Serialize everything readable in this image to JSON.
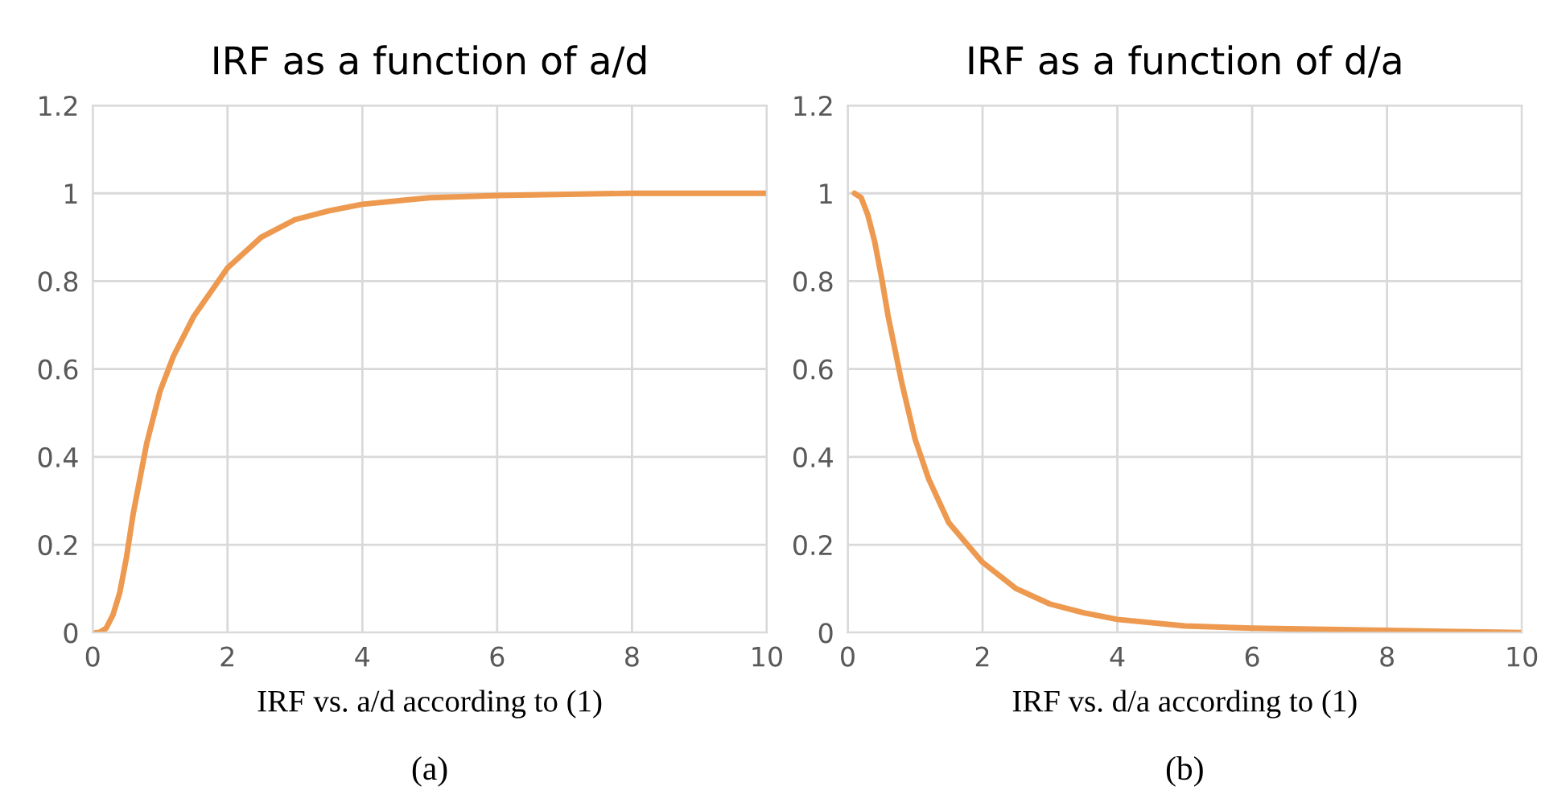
{
  "chart_data": [
    {
      "type": "line",
      "title": "IRF as a function of a/d",
      "xlabel": "IRF vs. a/d according to (1)",
      "annotations": [
        "(a)"
      ],
      "x": [
        0.05,
        0.1,
        0.2,
        0.3,
        0.4,
        0.5,
        0.6,
        0.8,
        1.0,
        1.2,
        1.5,
        2,
        2.5,
        3,
        3.5,
        4,
        5,
        6,
        8,
        10
      ],
      "series": [
        {
          "color": "#ed9a50",
          "values": [
            0,
            0,
            0.01,
            0.04,
            0.09,
            0.17,
            0.27,
            0.43,
            0.55,
            0.63,
            0.72,
            0.83,
            0.9,
            0.94,
            0.96,
            0.975,
            0.99,
            0.995,
            1.0,
            1.0
          ]
        }
      ],
      "xlim": [
        0,
        10
      ],
      "xticks": [
        0,
        2,
        4,
        6,
        8,
        10
      ],
      "ylim": [
        0,
        1.2
      ],
      "yticks": [
        0,
        0.2,
        0.4,
        0.6,
        0.8,
        1,
        1.2
      ],
      "grid": true,
      "marker": "none",
      "line_style": "solid"
    },
    {
      "type": "line",
      "title": "IRF as a function of d/a",
      "xlabel": "IRF vs. d/a according to (1)",
      "annotations": [
        "(b)"
      ],
      "x": [
        0.1,
        0.2,
        0.3,
        0.4,
        0.5,
        0.6,
        0.8,
        1.0,
        1.2,
        1.5,
        2,
        2.5,
        3,
        3.5,
        4,
        5,
        6,
        8,
        10
      ],
      "series": [
        {
          "color": "#ed9a50",
          "values": [
            1.0,
            0.99,
            0.95,
            0.89,
            0.81,
            0.72,
            0.57,
            0.44,
            0.35,
            0.25,
            0.16,
            0.1,
            0.065,
            0.045,
            0.03,
            0.015,
            0.01,
            0.005,
            0
          ]
        }
      ],
      "xlim": [
        0,
        10
      ],
      "xticks": [
        0,
        2,
        4,
        6,
        8,
        10
      ],
      "ylim": [
        0,
        1.2
      ],
      "yticks": [
        0,
        0.2,
        0.4,
        0.6,
        0.8,
        1,
        1.2
      ],
      "grid": true,
      "marker": "none",
      "line_style": "solid"
    }
  ]
}
